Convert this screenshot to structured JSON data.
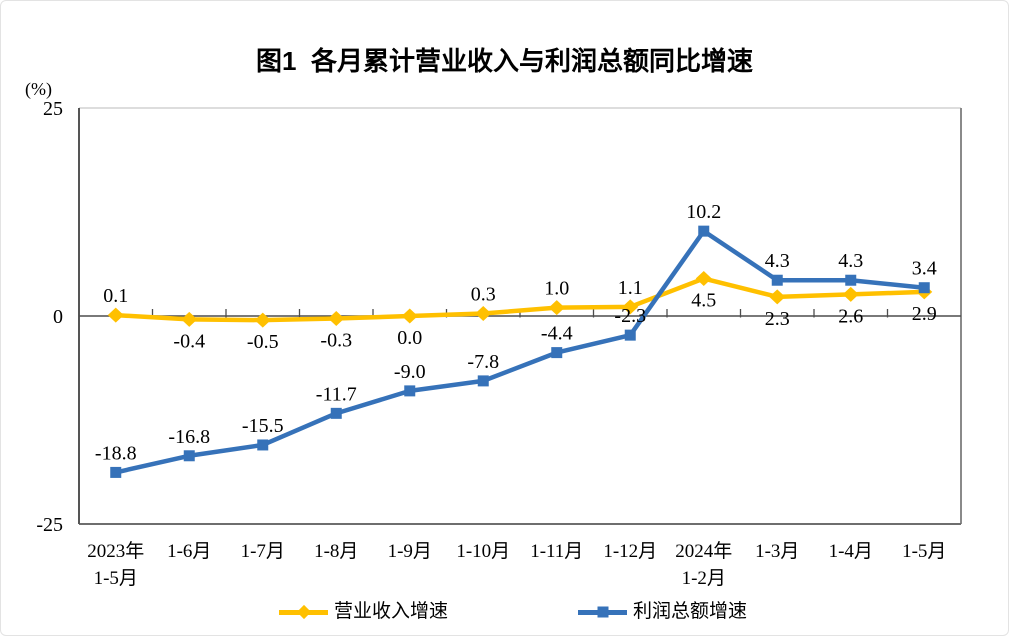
{
  "chart_data": {
    "type": "line",
    "title": "图1  各月累计营业收入与利润总额同比增速",
    "unit_label": "(%)",
    "categories": [
      [
        "2023年",
        "1-5月"
      ],
      [
        "1-6月"
      ],
      [
        "1-7月"
      ],
      [
        "1-8月"
      ],
      [
        "1-9月"
      ],
      [
        "1-10月"
      ],
      [
        "1-11月"
      ],
      [
        "1-12月"
      ],
      [
        "2024年",
        "1-2月"
      ],
      [
        "1-3月"
      ],
      [
        "1-4月"
      ],
      [
        "1-5月"
      ]
    ],
    "y_axis": {
      "min": -25,
      "max": 25,
      "tick_values": [
        25,
        0,
        -25
      ],
      "tick_labels": [
        "25",
        "0",
        "-25"
      ]
    },
    "grid": false,
    "legend_position": "bottom",
    "axis_color": "#4d4d4d",
    "series": [
      {
        "name": "营业收入增速",
        "color": "#FFC000",
        "marker": "diamond",
        "values": [
          0.1,
          -0.4,
          -0.5,
          -0.3,
          0.0,
          0.3,
          1.0,
          1.1,
          4.5,
          2.3,
          2.6,
          2.9
        ],
        "label_side": [
          "above",
          "below",
          "below",
          "below",
          "below",
          "above",
          "above",
          "above",
          "below",
          "below",
          "below",
          "below"
        ]
      },
      {
        "name": "利润总额增速",
        "color": "#3672B9",
        "marker": "square",
        "values": [
          -18.8,
          -16.8,
          -15.5,
          -11.7,
          -9.0,
          -7.8,
          -4.4,
          -2.3,
          10.2,
          4.3,
          4.3,
          3.4
        ],
        "label_side": [
          "above",
          "above",
          "above",
          "above",
          "above",
          "above",
          "above",
          "above",
          "above",
          "above",
          "above",
          "above"
        ]
      }
    ]
  }
}
